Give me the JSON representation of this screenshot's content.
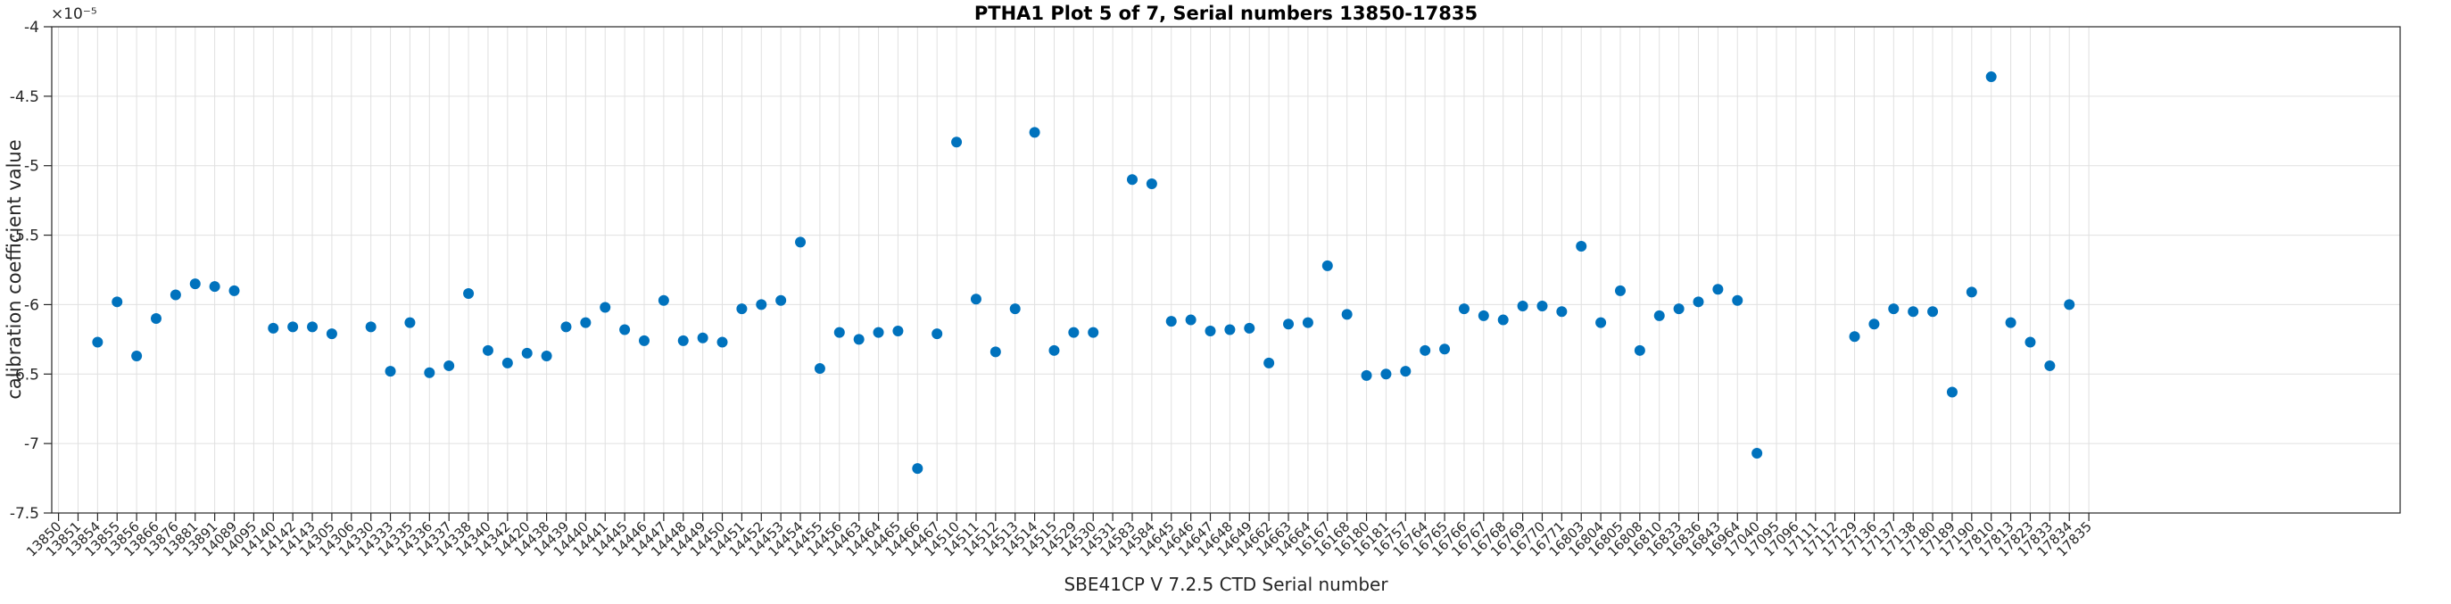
{
  "title": "PTHA1 Plot 5 of 7, Serial numbers 13850-17835",
  "chart_data": {
    "type": "scatter",
    "title": "PTHA1 Plot 5 of 7, Serial numbers 13850-17835",
    "xlabel": "SBE41CP V 7.2.5 CTD Serial number",
    "ylabel": "calibration coefficient value",
    "y_offset_label": "×10⁻⁵",
    "y_unit_exponent": -5,
    "ylim": [
      -7.5,
      -4
    ],
    "yticks": [
      -4,
      -4.5,
      -5,
      -5.5,
      -6,
      -6.5,
      -7,
      -7.5
    ],
    "grid": true,
    "legend": "none",
    "marker": "filled-circle",
    "marker_color": "#0072BD",
    "axis_color": "#262626",
    "grid_color": "#e0e0e0",
    "categories": [
      "13850",
      "13851",
      "13854",
      "13855",
      "13856",
      "13866",
      "13876",
      "13881",
      "13891",
      "14089",
      "14095",
      "14140",
      "14142",
      "14143",
      "14305",
      "14306",
      "14330",
      "14333",
      "14335",
      "14336",
      "14337",
      "14338",
      "14340",
      "14342",
      "14420",
      "14438",
      "14439",
      "14440",
      "14441",
      "14445",
      "14446",
      "14447",
      "14448",
      "14449",
      "14450",
      "14451",
      "14452",
      "14453",
      "14454",
      "14455",
      "14456",
      "14463",
      "14464",
      "14465",
      "14466",
      "14467",
      "14510",
      "14511",
      "14512",
      "14513",
      "14514",
      "14515",
      "14529",
      "14530",
      "14531",
      "14583",
      "14584",
      "14645",
      "14646",
      "14647",
      "14648",
      "14649",
      "14662",
      "14663",
      "14664",
      "16167",
      "16168",
      "16180",
      "16181",
      "16757",
      "16764",
      "16765",
      "16766",
      "16767",
      "16768",
      "16769",
      "16770",
      "16771",
      "16803",
      "16804",
      "16805",
      "16808",
      "16810",
      "16833",
      "16836",
      "16843",
      "16964",
      "17040",
      "17095",
      "17096",
      "17111",
      "17112",
      "17129",
      "17136",
      "17137",
      "17138",
      "17180",
      "17189",
      "17190",
      "17810",
      "17813",
      "17823",
      "17833",
      "17834",
      "17835"
    ],
    "values": [
      null,
      null,
      -6.27,
      -5.98,
      -6.37,
      -6.1,
      -5.93,
      -5.85,
      -5.87,
      -5.9,
      null,
      -6.17,
      -6.16,
      -6.16,
      -6.21,
      null,
      -6.16,
      -6.48,
      -6.13,
      -6.49,
      -6.44,
      -5.92,
      -6.33,
      -6.42,
      -6.35,
      -6.37,
      -6.16,
      -6.13,
      -6.02,
      -6.18,
      -6.26,
      -5.97,
      -6.26,
      -6.24,
      -6.27,
      -6.03,
      -6.0,
      -5.97,
      -5.55,
      -6.46,
      -6.2,
      -6.25,
      -6.2,
      -6.19,
      -7.18,
      -6.21,
      -4.83,
      -5.96,
      -6.34,
      -6.03,
      -4.76,
      -6.33,
      -6.2,
      -6.2,
      null,
      -5.1,
      -5.13,
      -6.12,
      -6.11,
      -6.19,
      -6.18,
      -6.17,
      -6.42,
      -6.14,
      -6.13,
      -5.72,
      -6.07,
      -6.51,
      -6.5,
      -6.48,
      -6.33,
      -6.32,
      -6.03,
      -6.08,
      -6.11,
      -6.01,
      -6.01,
      -6.05,
      -5.58,
      -6.13,
      -5.9,
      -6.33,
      -6.08,
      -6.03,
      -5.98,
      -5.89,
      -5.97,
      -7.07,
      null,
      null,
      null,
      null,
      -6.23,
      -6.14,
      -6.03,
      -6.05,
      -6.05,
      -6.63,
      -5.91,
      -4.36,
      -6.13,
      -6.27,
      -6.44,
      -6.0,
      null
    ]
  }
}
